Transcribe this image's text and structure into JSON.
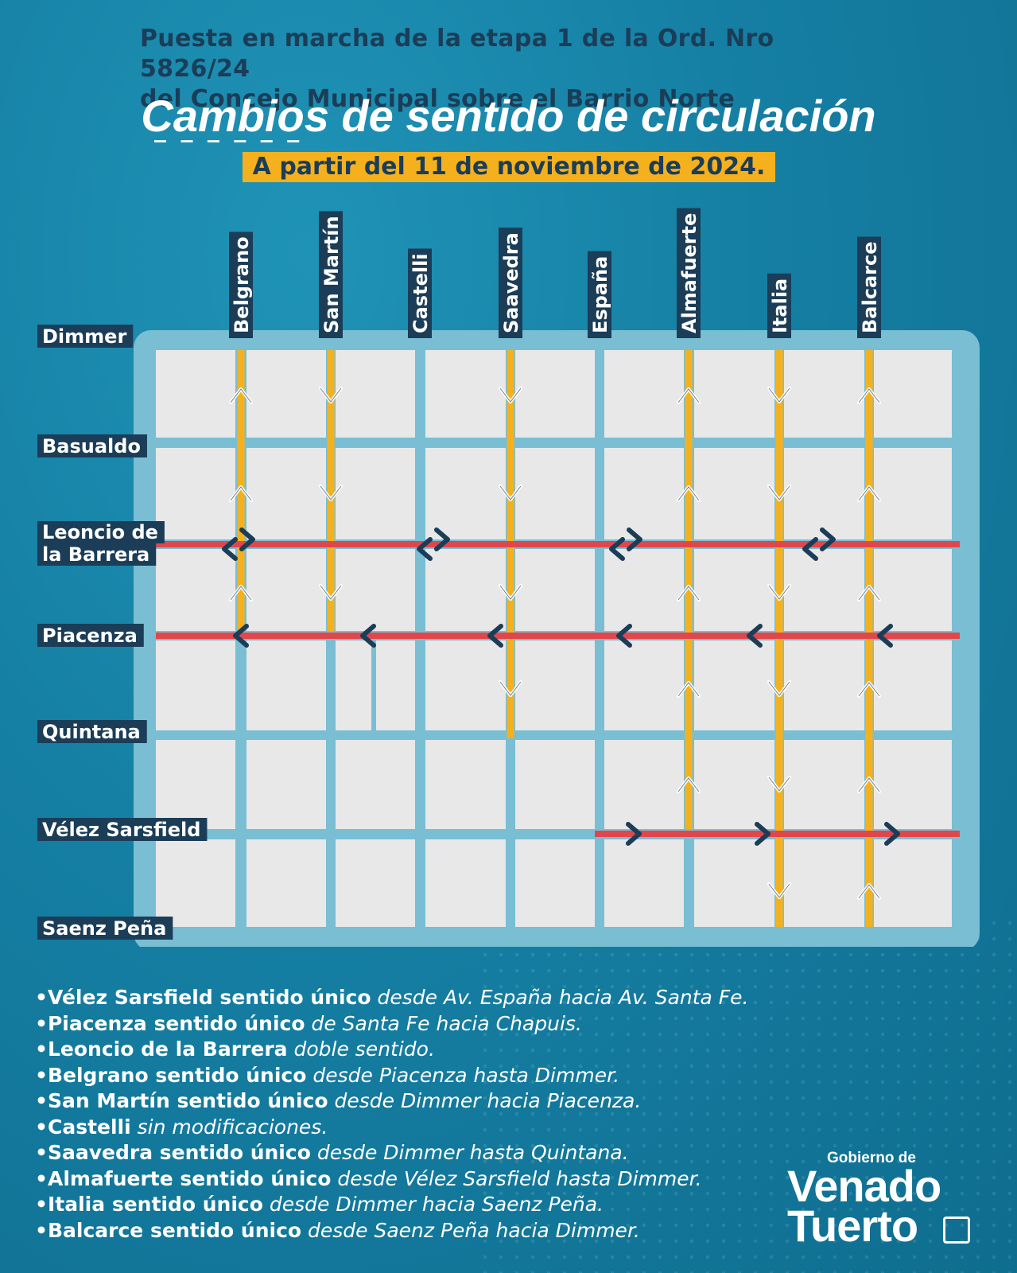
{
  "header": {
    "line1": "Puesta en marcha de la etapa 1 de la Ord. Nro 5826/24",
    "line2": "del Concejo Municipal sobre el Barrio Norte",
    "dashes": "_ _ _ _ _ _",
    "title": "Cambios de sentido de circulación",
    "date": "A partir del 11 de noviembre de 2024."
  },
  "map": {
    "vertical_streets": [
      "Belgrano",
      "San Martín",
      "Castelli",
      "Saavedra",
      "España",
      "Almafuerte",
      "Italia",
      "Balcarce"
    ],
    "horizontal_streets": [
      "Dimmer",
      "Basualdo",
      "Leoncio de la Barrera",
      "Piacenza",
      "Quintana",
      "Vélez Sarsfield",
      "Saenz Peña"
    ],
    "colors": {
      "background": "#157fa3",
      "grid_panel": "#79bed3",
      "block": "#e8e8e8",
      "vertical_change": "#f5b11d",
      "horizontal_change": "#e0474c",
      "arrow_dark": "#1b3d57",
      "label_bg": "#1b3d57"
    }
  },
  "notes": [
    {
      "bold": "Vélez Sarsfield sentido único",
      "italic": "desde Av. España hacia Av. Santa Fe."
    },
    {
      "bold": "Piacenza sentido único",
      "italic": "de Santa Fe hacia Chapuis."
    },
    {
      "bold": "Leoncio de la Barrera",
      "italic": "doble sentido."
    },
    {
      "bold": "Belgrano sentido único",
      "italic": "desde Piacenza hasta Dimmer."
    },
    {
      "bold": "San Martín sentido único",
      "italic": "desde Dimmer hacia Piacenza."
    },
    {
      "bold": "Castelli",
      "italic": "sin modificaciones."
    },
    {
      "bold": "Saavedra sentido único",
      "italic": "desde Dimmer hasta Quintana."
    },
    {
      "bold": "Almafuerte sentido único",
      "italic": "desde Vélez Sarsfield hasta Dimmer."
    },
    {
      "bold": "Italia sentido único",
      "italic": "desde Dimmer hacia Saenz Peña."
    },
    {
      "bold": "Balcarce sentido único",
      "italic": "desde Saenz Peña hacia Dimmer."
    }
  ],
  "logo": {
    "prefix": "Gobierno de",
    "word1": "Venado",
    "word2": "Tuerto"
  }
}
